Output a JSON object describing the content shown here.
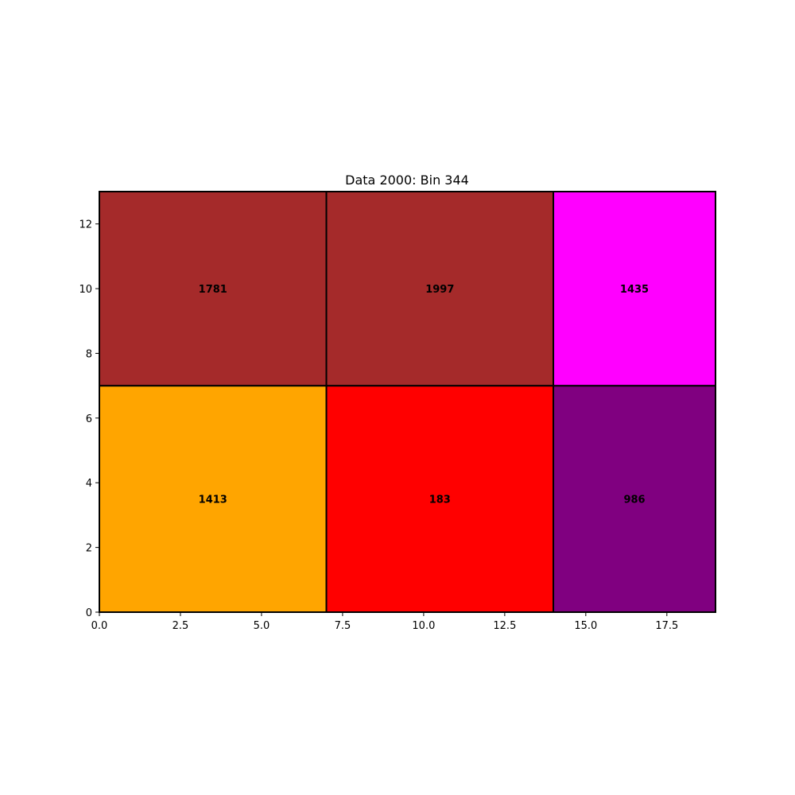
{
  "chart_data": {
    "type": "treemap",
    "title": "Data 2000: Bin 344",
    "xlabel": "",
    "ylabel": "",
    "xlim": [
      0,
      19
    ],
    "ylim": [
      0,
      13
    ],
    "xticks": [
      0.0,
      2.5,
      5.0,
      7.5,
      10.0,
      12.5,
      15.0,
      17.5
    ],
    "xtick_labels": [
      "0.0",
      "2.5",
      "5.0",
      "7.5",
      "10.0",
      "12.5",
      "15.0",
      "17.5"
    ],
    "yticks": [
      0,
      2,
      4,
      6,
      8,
      10,
      12
    ],
    "ytick_labels": [
      "0",
      "2",
      "4",
      "6",
      "8",
      "10",
      "12"
    ],
    "grid": false,
    "rectangles": [
      {
        "label": "1413",
        "x0": 0,
        "x1": 7,
        "y0": 0,
        "y1": 7,
        "color": "#ffa500"
      },
      {
        "label": "183",
        "x0": 7,
        "x1": 14,
        "y0": 0,
        "y1": 7,
        "color": "#ff0000"
      },
      {
        "label": "986",
        "x0": 14,
        "x1": 19,
        "y0": 0,
        "y1": 7,
        "color": "#800080"
      },
      {
        "label": "1781",
        "x0": 0,
        "x1": 7,
        "y0": 7,
        "y1": 13,
        "color": "#a52a2a"
      },
      {
        "label": "1997",
        "x0": 7,
        "x1": 14,
        "y0": 7,
        "y1": 13,
        "color": "#a52a2a"
      },
      {
        "label": "1435",
        "x0": 14,
        "x1": 19,
        "y0": 7,
        "y1": 13,
        "color": "#ff00ff"
      }
    ]
  }
}
